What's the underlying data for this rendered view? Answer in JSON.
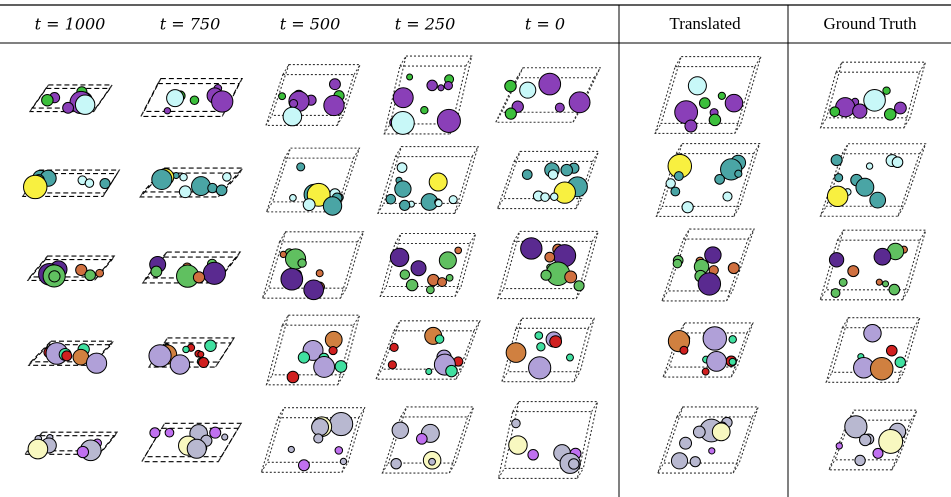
{
  "header": {
    "columns": [
      "t = 1000",
      "t = 750",
      "t = 500",
      "t = 250",
      "t = 0",
      "Translated",
      "Ground Truth"
    ]
  }
}
